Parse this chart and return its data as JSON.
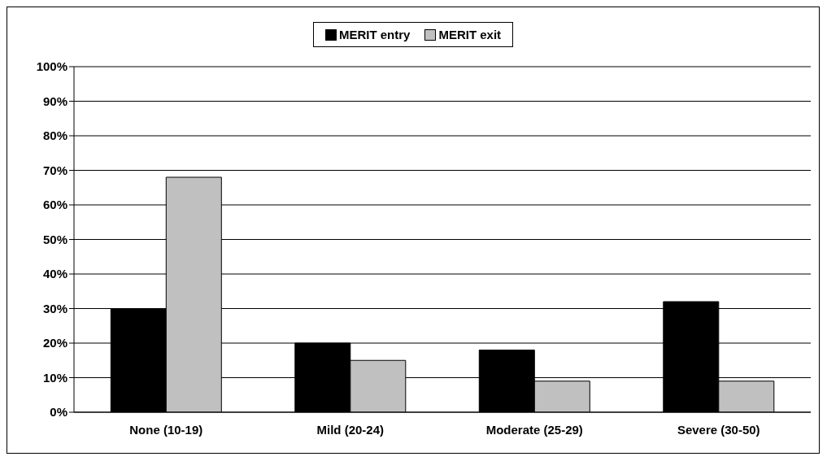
{
  "chart_data": {
    "type": "bar",
    "categories": [
      "None (10-19)",
      "Mild (20-24)",
      "Moderate (25-29)",
      "Severe (30-50)"
    ],
    "series": [
      {
        "name": "MERIT entry",
        "color": "#000000",
        "values": [
          30,
          20,
          18,
          32
        ]
      },
      {
        "name": "MERIT exit",
        "color": "#c0c0c0",
        "values": [
          68,
          15,
          9,
          9
        ]
      }
    ],
    "ylim": [
      0,
      100
    ],
    "yticks": [
      {
        "value": 0,
        "label": "0%"
      },
      {
        "value": 10,
        "label": "10%"
      },
      {
        "value": 20,
        "label": "20%"
      },
      {
        "value": 30,
        "label": "30%"
      },
      {
        "value": 40,
        "label": "40%"
      },
      {
        "value": 50,
        "label": "50%"
      },
      {
        "value": 60,
        "label": "60%"
      },
      {
        "value": 70,
        "label": "70%"
      },
      {
        "value": 80,
        "label": "80%"
      },
      {
        "value": 90,
        "label": "90%"
      },
      {
        "value": 100,
        "label": "100%"
      }
    ],
    "grid": "y",
    "legend": "top"
  }
}
